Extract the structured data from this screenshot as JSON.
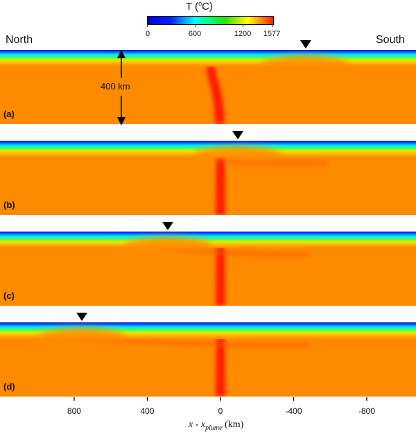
{
  "colorbar": {
    "title_prefix": "T (",
    "title_sup": "o",
    "title_suffix": "C)",
    "ticks": [
      "0",
      "600",
      "1200",
      "1577"
    ],
    "tick_values": [
      0,
      600,
      1200,
      1577
    ],
    "range": [
      0,
      1577
    ],
    "colormap": "jet"
  },
  "labels": {
    "north": "North",
    "south": "South",
    "scale": "400 km"
  },
  "chart_data": {
    "type": "heatmap",
    "title": "",
    "panels": [
      {
        "label": "(a)",
        "marker_x_km": -466,
        "plume_tilted": true
      },
      {
        "label": "(b)",
        "marker_x_km": -95,
        "plume_tilted": false
      },
      {
        "label": "(c)",
        "marker_x_km": 288,
        "plume_tilted": false
      },
      {
        "label": "(d)",
        "marker_x_km": 758,
        "plume_tilted": false
      }
    ],
    "x_ticks": [
      "800",
      "400",
      "0",
      "-400",
      "-800"
    ],
    "x_tick_values": [
      800,
      400,
      0,
      -400,
      -800
    ],
    "xlim": [
      1205,
      -1069
    ],
    "xlabel_main": "x - x",
    "xlabel_sub": "plume",
    "xlabel_unit": " (km)",
    "colors": {
      "mantle": "#fe8a00",
      "plume": "#ff1a00",
      "marker": "#000000"
    }
  }
}
